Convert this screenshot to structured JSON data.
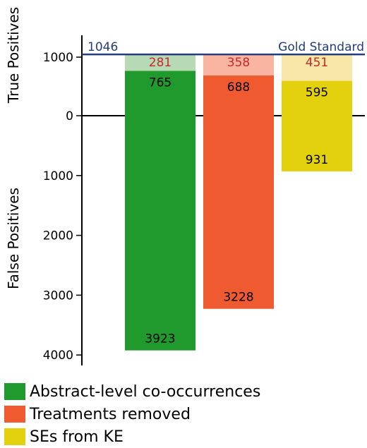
{
  "chart_data": {
    "type": "bar",
    "ylabel_top": "True Positives",
    "ylabel_bottom": "False Positives",
    "tp_ticks": [
      0,
      1000
    ],
    "fp_ticks": [
      1000,
      2000,
      3000,
      4000
    ],
    "tp_range": [
      0,
      1046
    ],
    "fp_range": [
      0,
      4100
    ],
    "reference": {
      "label": "Gold Standard",
      "value": 1046,
      "value_label": "1046",
      "color": "#233c7c"
    },
    "series": [
      {
        "name": "Abstract-level co-occurrences",
        "color": "#219a2d",
        "light_color": "#b7d9b3",
        "tp": 765,
        "fn": 281,
        "fp": 3923
      },
      {
        "name": "Treatments removed",
        "color": "#ef5a30",
        "light_color": "#f9b5a1",
        "tp": 688,
        "fn": 358,
        "fp": 3228
      },
      {
        "name": "SEs from KE",
        "color": "#e3d10d",
        "light_color": "#f9e7a7",
        "tp": 595,
        "fn": 451,
        "fp": 931
      }
    ],
    "missed_label_color": "#c9282d",
    "grid": false,
    "legend_position": "bottom-left"
  }
}
